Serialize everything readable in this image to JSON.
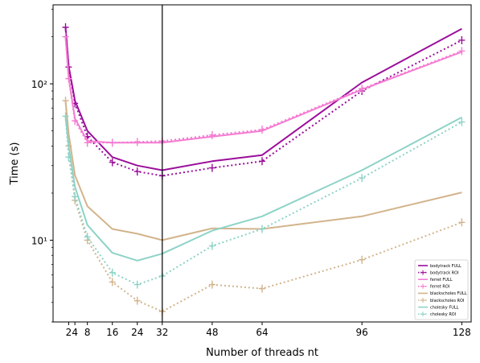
{
  "chart_data": {
    "type": "line",
    "xlabel": "Number of threads nt",
    "ylabel": "Time (s)",
    "yscale": "log",
    "ylim": [
      3.0,
      320
    ],
    "xlim": [
      -3,
      131
    ],
    "xticks": [
      2,
      4,
      8,
      16,
      24,
      32,
      48,
      64,
      96,
      128
    ],
    "xtick_labels": [
      "2",
      "4",
      "8",
      "16",
      "24",
      "32",
      "48",
      "64",
      "96",
      "128"
    ],
    "yticks": [
      10,
      100
    ],
    "ytick_labels": [
      "10¹",
      "10²"
    ],
    "vline_x": 32,
    "legend_position": "lower right",
    "x": [
      1,
      2,
      4,
      8,
      16,
      24,
      32,
      48,
      64,
      96,
      128
    ],
    "series": [
      {
        "name": "bodytrack FULL",
        "color": "#9b0f9b",
        "style": "solid",
        "values": [
          230,
          130,
          78,
          50,
          34,
          30,
          28,
          32,
          35,
          102,
          225
        ]
      },
      {
        "name": "bodytrack ROI",
        "color": "#9b0f9b",
        "style": "dotted",
        "values": [
          230,
          128,
          75,
          46,
          31.5,
          27.5,
          25.8,
          29,
          32,
          90,
          190
        ]
      },
      {
        "name": "ferret FULL",
        "color": "#f57bd2",
        "style": "solid",
        "values": [
          200,
          110,
          60,
          43,
          42,
          42,
          42,
          46,
          50,
          92,
          160
        ]
      },
      {
        "name": "ferret ROI",
        "color": "#f57bd2",
        "style": "dotted",
        "values": [
          200,
          108,
          58,
          42,
          42,
          42.5,
          43,
          47,
          51,
          93,
          162
        ]
      },
      {
        "name": "blackscholes FULL",
        "color": "#d2b48c",
        "style": "solid",
        "values": [
          78,
          48,
          26,
          16.5,
          11.8,
          11,
          10,
          11.9,
          11.8,
          14.2,
          20.2
        ]
      },
      {
        "name": "blackscholes ROI",
        "color": "#d2b48c",
        "style": "dotted",
        "values": [
          78,
          40,
          18,
          10,
          5.4,
          4.1,
          3.5,
          5.2,
          4.9,
          7.5,
          13
        ]
      },
      {
        "name": "cholesky FULL",
        "color": "#8dd3c7",
        "style": "solid",
        "values": [
          62,
          40,
          22,
          12.5,
          8.3,
          7.4,
          8.2,
          11.5,
          14.2,
          28,
          61
        ]
      },
      {
        "name": "cholesky ROI",
        "color": "#8dd3c7",
        "style": "dotted",
        "values": [
          62,
          34,
          19,
          10.5,
          6.2,
          5.2,
          5.9,
          9.2,
          11.8,
          25,
          57
        ]
      }
    ]
  }
}
